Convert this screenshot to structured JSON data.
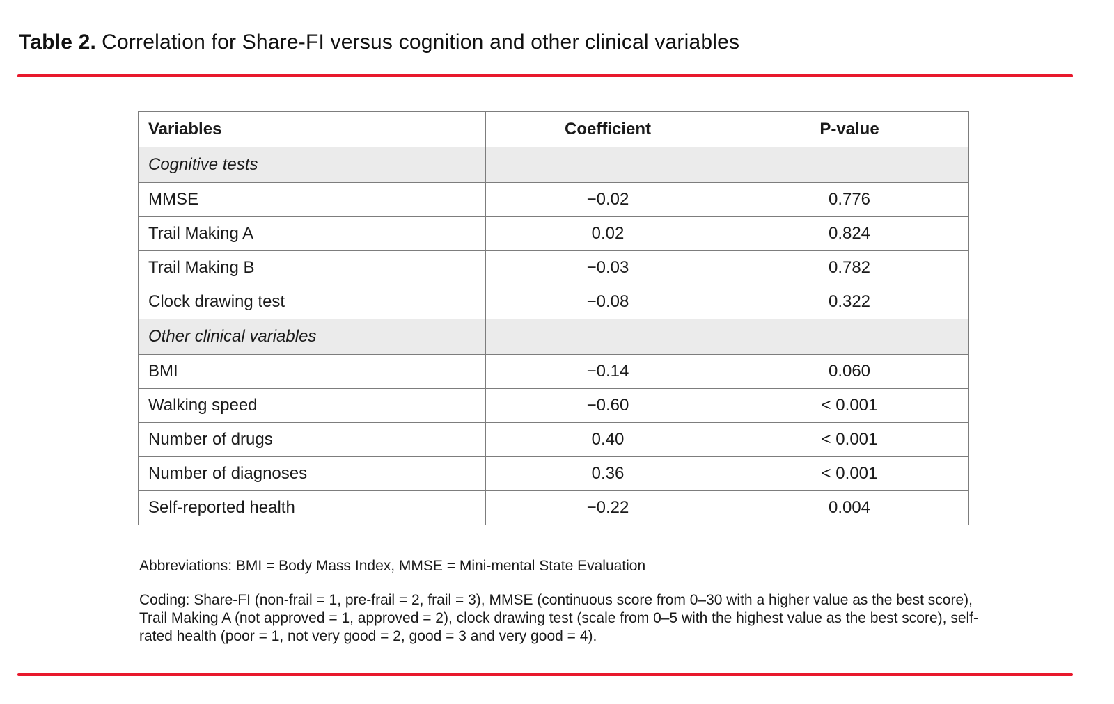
{
  "accent_color": "#e8182c",
  "title": {
    "label": "Table 2.",
    "text": "Correlation for Share-FI versus cognition and other clinical variables"
  },
  "table": {
    "headers": [
      "Variables",
      "Coefficient",
      "P-value"
    ],
    "rows": [
      {
        "type": "section",
        "label": "Cognitive tests"
      },
      {
        "type": "data",
        "variable": "MMSE",
        "coefficient": "−0.02",
        "p_value": "0.776"
      },
      {
        "type": "data",
        "variable": "Trail Making A",
        "coefficient": "0.02",
        "p_value": "0.824"
      },
      {
        "type": "data",
        "variable": "Trail Making B",
        "coefficient": "−0.03",
        "p_value": "0.782"
      },
      {
        "type": "data",
        "variable": "Clock drawing test",
        "coefficient": "−0.08",
        "p_value": "0.322"
      },
      {
        "type": "section",
        "label": "Other clinical variables"
      },
      {
        "type": "data",
        "variable": "BMI",
        "coefficient": "−0.14",
        "p_value": "0.060"
      },
      {
        "type": "data",
        "variable": "Walking speed",
        "coefficient": "−0.60",
        "p_value": "< 0.001"
      },
      {
        "type": "data",
        "variable": "Number of drugs",
        "coefficient": "0.40",
        "p_value": "< 0.001"
      },
      {
        "type": "data",
        "variable": "Number of diagnoses",
        "coefficient": "0.36",
        "p_value": "< 0.001"
      },
      {
        "type": "data",
        "variable": "Self-reported health",
        "coefficient": "−0.22",
        "p_value": "0.004"
      }
    ]
  },
  "footnotes": {
    "abbreviations": "Abbreviations: BMI = Body Mass Index, MMSE = Mini-mental State Evaluation",
    "coding": "Coding: Share-FI (non-frail = 1, pre-frail = 2, frail = 3), MMSE (continuous score from 0–30 with a higher value as the best score), Trail Making A (not approved = 1, approved = 2), clock drawing test (scale from 0–5 with the highest value as the best score), self-rated health (poor = 1, not very good = 2, good = 3 and very good = 4)."
  }
}
